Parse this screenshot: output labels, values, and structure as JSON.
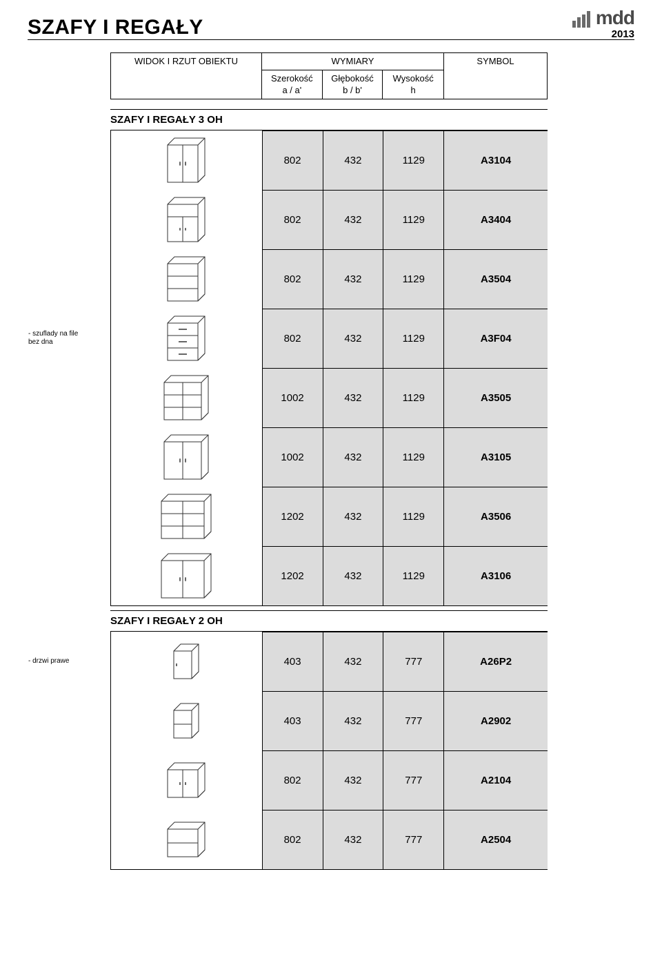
{
  "header": {
    "title": "SZAFY I REGAŁY",
    "logo_text": "mdd",
    "year": "2013",
    "logo_bar_color": "#6a6a6a"
  },
  "columns": {
    "view": "WIDOK I RZUT OBIEKTU",
    "dims": "WYMIARY",
    "width": "Szerokość\na / a'",
    "depth": "Głębokość\nb / b'",
    "height": "Wysokość\nh",
    "symbol": "SYMBOL"
  },
  "sections": [
    {
      "title": "SZAFY I REGAŁY 3 OH",
      "rows": [
        {
          "note": "",
          "icon": "closed",
          "w": "802",
          "d": "432",
          "h": "1129",
          "sym": "A3104"
        },
        {
          "note": "",
          "icon": "half_doors",
          "w": "802",
          "d": "432",
          "h": "1129",
          "sym": "A3404"
        },
        {
          "note": "",
          "icon": "open3",
          "w": "802",
          "d": "432",
          "h": "1129",
          "sym": "A3504"
        },
        {
          "note": "- szuflady na file\n  bez dna",
          "icon": "drawers",
          "w": "802",
          "d": "432",
          "h": "1129",
          "sym": "A3F04"
        },
        {
          "note": "",
          "icon": "open3x2",
          "w": "1002",
          "d": "432",
          "h": "1129",
          "sym": "A3505"
        },
        {
          "note": "",
          "icon": "closed_wide",
          "w": "1002",
          "d": "432",
          "h": "1129",
          "sym": "A3105"
        },
        {
          "note": "",
          "icon": "open3x2w",
          "w": "1202",
          "d": "432",
          "h": "1129",
          "sym": "A3506"
        },
        {
          "note": "",
          "icon": "closed_wider",
          "w": "1202",
          "d": "432",
          "h": "1129",
          "sym": "A3106"
        }
      ]
    },
    {
      "title": "SZAFY I REGAŁY 2 OH",
      "rows": [
        {
          "note": "- drzwi prawe",
          "icon": "single_door",
          "w": "403",
          "d": "432",
          "h": "777",
          "sym": "A26P2"
        },
        {
          "note": "",
          "icon": "open2_narrow",
          "w": "403",
          "d": "432",
          "h": "777",
          "sym": "A2902"
        },
        {
          "note": "",
          "icon": "closed2",
          "w": "802",
          "d": "432",
          "h": "777",
          "sym": "A2104"
        },
        {
          "note": "",
          "icon": "open2",
          "w": "802",
          "d": "432",
          "h": "777",
          "sym": "A2504"
        }
      ]
    }
  ],
  "style": {
    "row_bg": "#dcdcdc",
    "stroke": "#333333"
  }
}
